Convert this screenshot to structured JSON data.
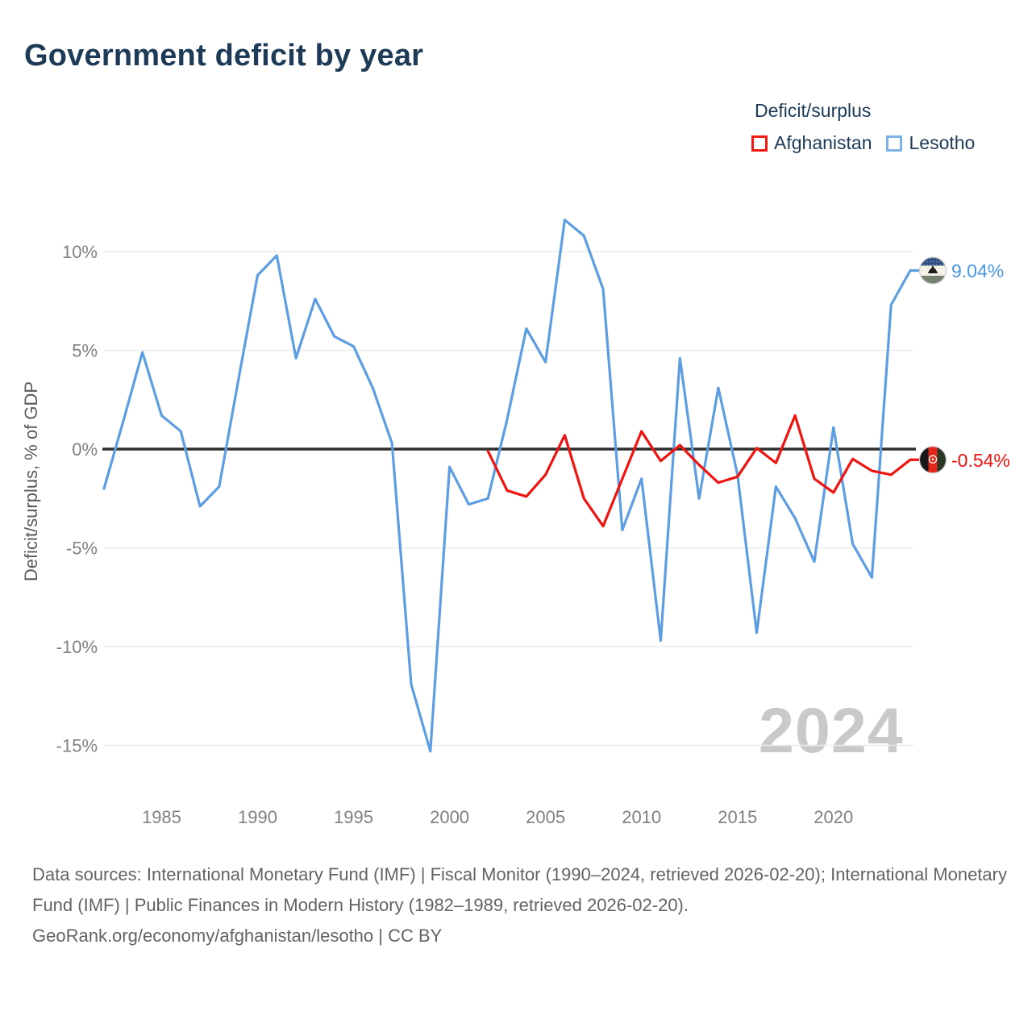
{
  "title": "Government deficit by year",
  "legend": {
    "title": "Deficit/surplus",
    "items": [
      {
        "label": "Afghanistan",
        "color": "#ee1410"
      },
      {
        "label": "Lesotho",
        "color": "#5d9de2"
      }
    ]
  },
  "y_axis": {
    "title": "Deficit/surplus, % of GDP",
    "tick_labels": [
      "10%",
      "5%",
      "0%",
      "-5%",
      "-10%",
      "-15%"
    ]
  },
  "x_axis": {
    "tick_labels": [
      "1985",
      "1990",
      "1995",
      "2000",
      "2005",
      "2010",
      "2015",
      "2020"
    ]
  },
  "end_labels": {
    "lesotho": "9.04%",
    "afghanistan": "-0.54%"
  },
  "watermark": "2024",
  "footer": {
    "sources": "Data sources: International Monetary Fund (IMF) | Fiscal Monitor (1990–2024, retrieved 2026-02-20); International Monetary Fund (IMF) | Public Finances in Modern History (1982–1989, retrieved 2026-02-20).",
    "attribution": "GeoRank.org/economy/afghanistan/lesotho | CC BY"
  },
  "chart_data": {
    "type": "line",
    "title": "Government deficit by year",
    "xlabel": "",
    "ylabel": "Deficit/surplus, % of GDP",
    "x_range": [
      1982,
      2024
    ],
    "ylim": [
      -17,
      13
    ],
    "y_ticks": [
      10,
      5,
      0,
      -5,
      -10,
      -15
    ],
    "x_ticks": [
      1985,
      1990,
      1995,
      2000,
      2005,
      2010,
      2015,
      2020
    ],
    "grid": true,
    "zero_line": true,
    "legend_position": "top-right",
    "series": [
      {
        "name": "Afghanistan",
        "color": "#ee1410",
        "end_label": "-0.54%",
        "years": [
          2002,
          2003,
          2004,
          2005,
          2006,
          2007,
          2008,
          2009,
          2010,
          2011,
          2012,
          2013,
          2014,
          2015,
          2016,
          2017,
          2018,
          2019,
          2020,
          2021,
          2022,
          2023,
          2024
        ],
        "values": [
          -0.1,
          -2.1,
          -2.4,
          -1.3,
          0.7,
          -2.5,
          -3.9,
          -1.5,
          0.9,
          -0.6,
          0.2,
          -0.8,
          -1.7,
          -1.4,
          0.05,
          -0.7,
          1.7,
          -1.5,
          -2.2,
          -0.5,
          -1.1,
          -1.3,
          -0.54
        ]
      },
      {
        "name": "Lesotho",
        "color": "#5d9de2",
        "end_label": "9.04%",
        "years": [
          1982,
          1983,
          1984,
          1985,
          1986,
          1987,
          1988,
          1989,
          1990,
          1991,
          1992,
          1993,
          1994,
          1995,
          1996,
          1997,
          1998,
          1999,
          2000,
          2001,
          2002,
          2003,
          2004,
          2005,
          2006,
          2007,
          2008,
          2009,
          2010,
          2011,
          2012,
          2013,
          2014,
          2015,
          2016,
          2017,
          2018,
          2019,
          2020,
          2021,
          2022,
          2023,
          2024
        ],
        "values": [
          -2.0,
          1.4,
          4.9,
          1.7,
          0.9,
          -2.9,
          -1.9,
          3.5,
          8.8,
          9.8,
          4.6,
          7.6,
          5.7,
          5.2,
          3.1,
          0.3,
          -11.9,
          -15.3,
          -0.9,
          -2.8,
          -2.5,
          1.5,
          6.1,
          4.4,
          11.6,
          10.8,
          8.1,
          -4.1,
          -1.5,
          -9.7,
          4.6,
          -2.5,
          3.1,
          -1.3,
          -9.3,
          -1.9,
          -3.5,
          -5.7,
          1.1,
          -4.8,
          -6.5,
          7.3,
          9.04
        ]
      }
    ]
  }
}
